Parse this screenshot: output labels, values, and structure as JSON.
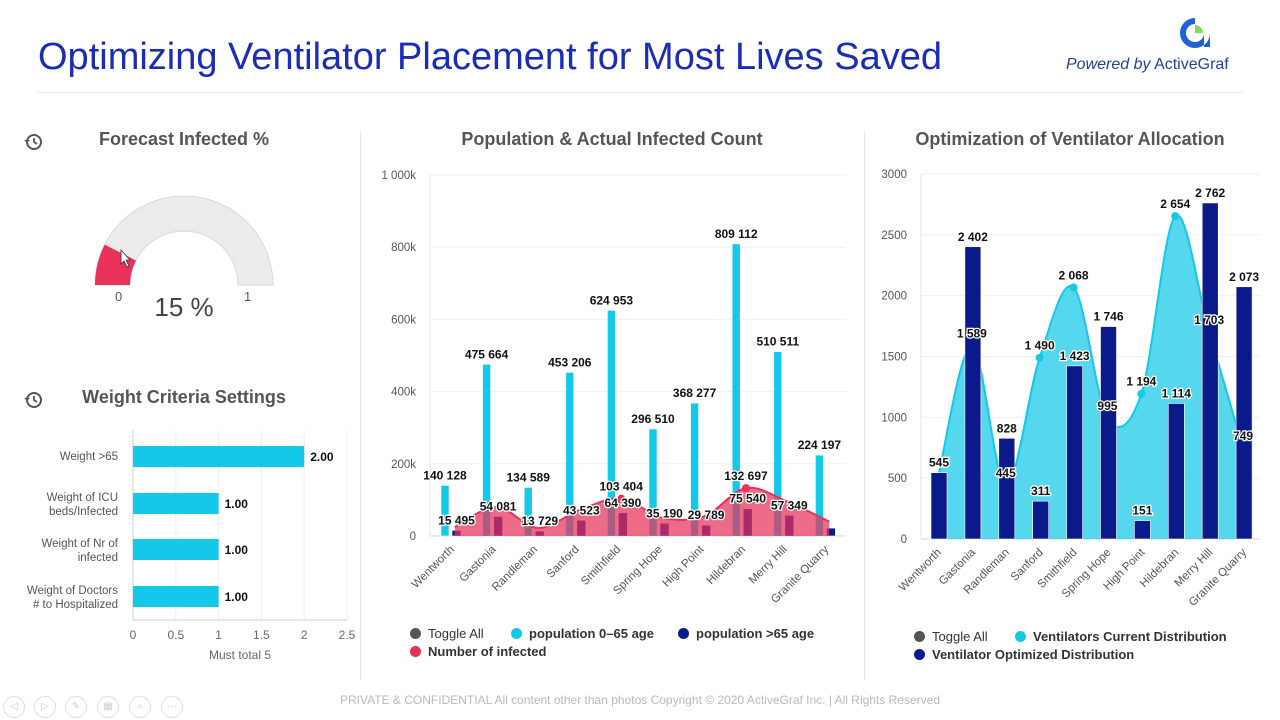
{
  "header": {
    "title": "Optimizing Ventilator Placement for Most Lives Saved",
    "powered_prefix": "Powered by",
    "brand": "ActiveGraf"
  },
  "forecast": {
    "title": "Forecast Infected %",
    "value_label": "15 %",
    "value_fraction": 0.15,
    "min_label": "0",
    "max_label": "1",
    "colors": {
      "fill": "#e8325a",
      "track": "#ececec"
    }
  },
  "weights": {
    "title": "Weight Criteria Settings",
    "xlabel": "Must total 5",
    "ticks": [
      "0",
      "0.5",
      "1",
      "1.5",
      "2",
      "2.5"
    ],
    "items": [
      {
        "label1": "Weight >65",
        "label2": "",
        "value": 2,
        "value_label": "2.00"
      },
      {
        "label1": "Weight of ICU",
        "label2": "beds/Infected",
        "value": 1,
        "value_label": "1.00"
      },
      {
        "label1": "Weight of Nr of",
        "label2": "infected",
        "value": 1,
        "value_label": "1.00"
      },
      {
        "label1": "Weight of Doctors",
        "label2": "# to Hospitalized",
        "value": 1,
        "value_label": "1.00"
      }
    ]
  },
  "chart_data": [
    {
      "type": "bar",
      "title": "Population & Actual Infected Count",
      "ylim": [
        0,
        1000000
      ],
      "yticks": [
        "0",
        "200k",
        "400k",
        "600k",
        "800k",
        "1 000k"
      ],
      "categories": [
        "Wentworth",
        "Gastonia",
        "Randleman",
        "Sanford",
        "Smithfield",
        "Spring Hope",
        "High Point",
        "Hildebran",
        "Merry Hill",
        "Granite Quarry"
      ],
      "series": [
        {
          "name": "population 0–65 age",
          "kind": "bar",
          "color": "#13c8e8",
          "values": [
            140128,
            475664,
            134589,
            453206,
            624953,
            296510,
            368277,
            809112,
            510511,
            224197
          ],
          "labels": [
            "140 128",
            "475 664",
            "134 589",
            "453 206",
            "624 953",
            "296 510",
            "368 277",
            "809 112",
            "510 511",
            "224 197"
          ]
        },
        {
          "name": "population >65 age",
          "kind": "bar",
          "color": "#0a1a8a",
          "values": [
            15495,
            54081,
            13729,
            43523,
            64390,
            35190,
            29789,
            75540,
            57349,
            22000
          ],
          "labels": [
            "15 495",
            "54 081",
            "13 729",
            "43 523",
            "64 390",
            "35 190",
            "29 789",
            "75 540",
            "57 349",
            null
          ]
        },
        {
          "name": "Number of infected",
          "kind": "area",
          "color": "#e8325a",
          "values": [
            25000,
            80000,
            22000,
            72000,
            103404,
            50000,
            55000,
            132697,
            95000,
            40000
          ],
          "labels": [
            null,
            null,
            null,
            null,
            "103 404",
            null,
            null,
            "132 697",
            null,
            null
          ]
        }
      ],
      "legend": {
        "toggle": "Toggle All",
        "position": "bottom"
      }
    },
    {
      "type": "bar",
      "title": "Optimization of Ventilator Allocation",
      "ylim": [
        0,
        3000
      ],
      "yticks": [
        "0",
        "500",
        "1000",
        "1500",
        "2000",
        "2500",
        "3000"
      ],
      "categories": [
        "Wentworth",
        "Gastonia",
        "Randleman",
        "Sanford",
        "Smithfield",
        "Spring Hope",
        "High Point",
        "Hildebran",
        "Merry Hill",
        "Granite Quarry"
      ],
      "series": [
        {
          "name": "Ventilators Current Distribution",
          "kind": "area",
          "color": "#13c8e8",
          "values": [
            500,
            1589,
            445,
            1490,
            2068,
            995,
            1194,
            2654,
            1703,
            749
          ],
          "labels": [
            null,
            "1 589",
            "445",
            "1 490",
            "2 068",
            "995",
            "1 194",
            "2 654",
            "1 703",
            "749"
          ]
        },
        {
          "name": "Ventilator Optimized Distribution",
          "kind": "bar",
          "color": "#0a1a8a",
          "values": [
            545,
            2402,
            828,
            311,
            1423,
            1746,
            151,
            1114,
            2762,
            2073
          ],
          "labels": [
            "545",
            "2 402",
            "828",
            "311",
            "1 423",
            "1 746",
            "151",
            "1 114",
            "2 762",
            "2 073"
          ]
        }
      ],
      "legend": {
        "toggle": "Toggle All",
        "position": "bottom"
      }
    }
  ],
  "footer": {
    "text": "PRIVATE & CONFIDENTIAL  All content other than photos Copyright © 2020 ActiveGraf Inc. | All Rights Reserved"
  },
  "toolbar": {
    "icons": [
      "previous-icon",
      "next-icon",
      "pen-icon",
      "slides-icon",
      "zoom-icon",
      "more-icon"
    ],
    "glyphs": [
      "◁",
      "▷",
      "✎",
      "▦",
      "⌕",
      "···"
    ]
  }
}
